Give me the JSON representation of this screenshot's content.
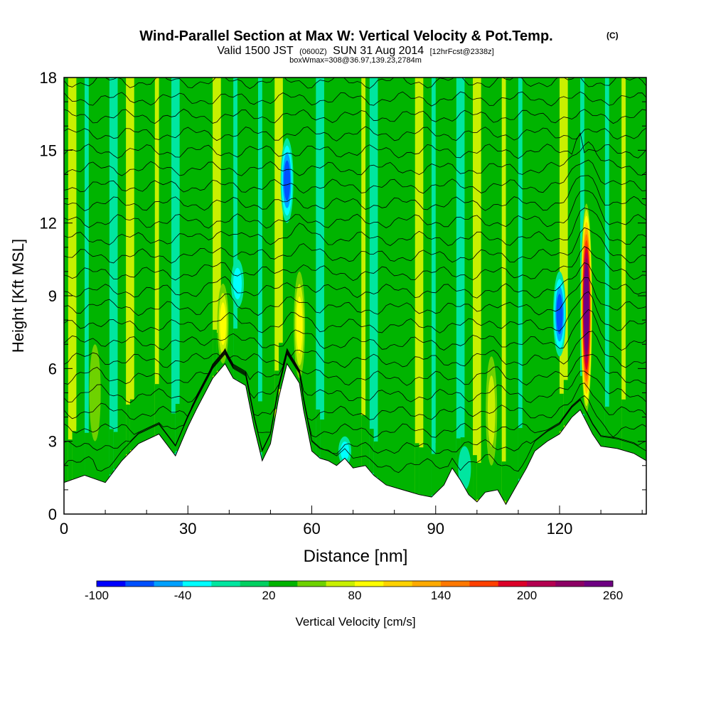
{
  "chart_data": {
    "type": "heatmap",
    "title": {
      "main": "Wind-Parallel Section at Max W: Vertical Velocity & Pot.Temp.",
      "main_suffix": "(C)",
      "line2_a": "Valid 1500 JST",
      "line2_b": "(0600Z)",
      "line2_c": "SUN 31 Aug 2014",
      "line2_d": "[12hrFcst@2338z]",
      "line3": "boxWmax=308@36.97,139.23,2784m"
    },
    "xlabel": "Distance [nm]",
    "ylabel": "Height [Kft MSL]",
    "xlim": [
      0,
      141
    ],
    "ylim": [
      0,
      18
    ],
    "x_ticks": [
      0,
      30,
      60,
      90,
      120
    ],
    "y_ticks": [
      0,
      3,
      6,
      9,
      12,
      15,
      18
    ],
    "colorbar": {
      "label": "Vertical Velocity [cm/s]",
      "ticks": [
        "-100",
        "-40",
        "20",
        "80",
        "140",
        "200",
        "260"
      ],
      "colors": [
        "#0000ff",
        "#0050ff",
        "#00a0ff",
        "#00ffff",
        "#00e6a0",
        "#00d060",
        "#00b400",
        "#6ed200",
        "#c8f000",
        "#ffff00",
        "#ffd200",
        "#ffaa00",
        "#ff7800",
        "#ff4000",
        "#dc0028",
        "#b40050",
        "#8c0064",
        "#6e0082"
      ]
    },
    "terrain_kft": [
      [
        0,
        1.3
      ],
      [
        5,
        1.6
      ],
      [
        10,
        1.3
      ],
      [
        14,
        2.2
      ],
      [
        18,
        2.9
      ],
      [
        23,
        3.3
      ],
      [
        27,
        2.4
      ],
      [
        30,
        3.6
      ],
      [
        32,
        4.3
      ],
      [
        36,
        5.6
      ],
      [
        39,
        6.2
      ],
      [
        41,
        5.6
      ],
      [
        44,
        5.3
      ],
      [
        46,
        3.6
      ],
      [
        48,
        2.2
      ],
      [
        50,
        2.9
      ],
      [
        52,
        4.8
      ],
      [
        54,
        6.2
      ],
      [
        57,
        5.4
      ],
      [
        58,
        4.3
      ],
      [
        60,
        2.6
      ],
      [
        62,
        2.3
      ],
      [
        64,
        2.2
      ],
      [
        66,
        2.0
      ],
      [
        68,
        2.3
      ],
      [
        70,
        1.9
      ],
      [
        73,
        2.0
      ],
      [
        75,
        1.6
      ],
      [
        78,
        1.2
      ],
      [
        82,
        1.0
      ],
      [
        86,
        0.8
      ],
      [
        89,
        0.7
      ],
      [
        92,
        1.2
      ],
      [
        94,
        1.9
      ],
      [
        96,
        1.4
      ],
      [
        98,
        0.8
      ],
      [
        100,
        0.5
      ],
      [
        102,
        0.9
      ],
      [
        105,
        1.0
      ],
      [
        107,
        0.4
      ],
      [
        109,
        1.0
      ],
      [
        112,
        1.9
      ],
      [
        114,
        2.6
      ],
      [
        117,
        3.0
      ],
      [
        120,
        3.3
      ],
      [
        123,
        4.0
      ],
      [
        125,
        4.3
      ],
      [
        128,
        3.3
      ],
      [
        130,
        2.8
      ],
      [
        134,
        2.7
      ],
      [
        138,
        2.5
      ],
      [
        141,
        2.2
      ]
    ],
    "updrafts": [
      {
        "x": 7.5,
        "y_range": [
          3.0,
          7.0
        ],
        "peak_cms": 45
      },
      {
        "x": 38.5,
        "y_range": [
          6.2,
          9.5
        ],
        "peak_cms": 80
      },
      {
        "x": 57,
        "y_range": [
          5.6,
          10.0
        ],
        "peak_cms": 80
      },
      {
        "x": 103.5,
        "y_range": [
          2.0,
          6.5
        ],
        "peak_cms": 50
      },
      {
        "x": 126.5,
        "y_range": [
          4.2,
          12.8
        ],
        "peak_cms": 260
      }
    ],
    "downdrafts": [
      {
        "x": 54,
        "y_range": [
          12.0,
          15.5
        ],
        "min_cms": -100
      },
      {
        "x": 42,
        "y_range": [
          8.5,
          10.5
        ],
        "min_cms": -60
      },
      {
        "x": 120,
        "y_range": [
          6.5,
          10.0
        ],
        "min_cms": -90
      },
      {
        "x": 68,
        "y_range": [
          2.0,
          3.2
        ],
        "min_cms": -50
      },
      {
        "x": 97,
        "y_range": [
          1.0,
          2.8
        ],
        "min_cms": -45
      }
    ],
    "isentrope_count": 24
  }
}
